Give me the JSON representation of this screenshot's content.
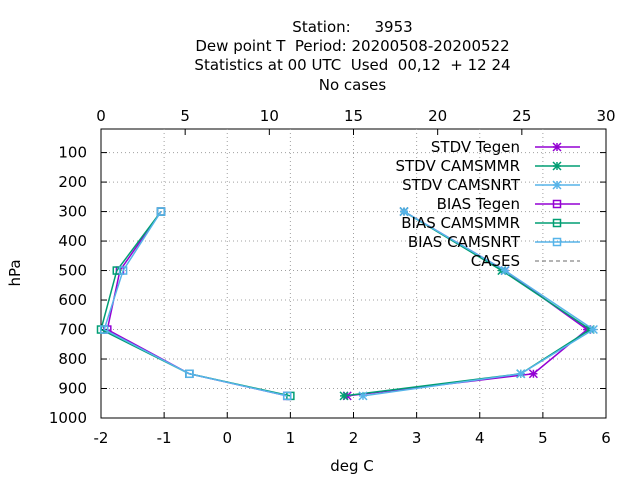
{
  "chart_data": {
    "type": "line",
    "title_lines": [
      "Station:     3953",
      "Dew point T  Period: 20200508-20200522",
      "Statistics at 00 UTC  Used  00,12  + 12 24",
      "No cases"
    ],
    "xlabel": "deg C",
    "ylabel": "hPa",
    "xlim": [
      -2,
      6
    ],
    "x2lim": [
      0,
      30
    ],
    "ylim": [
      1000,
      20
    ],
    "x_ticks": [
      "-2",
      "-1",
      "0",
      "1",
      "2",
      "3",
      "4",
      "5",
      "6"
    ],
    "x2_ticks": [
      "0",
      "5",
      "10",
      "15",
      "20",
      "25",
      "30"
    ],
    "y_ticks": [
      "100",
      "200",
      "300",
      "400",
      "500",
      "600",
      "700",
      "800",
      "900",
      "1000"
    ],
    "grid": true,
    "legend_position": "top-right",
    "levels": [
      300,
      500,
      700,
      850,
      925
    ],
    "series": [
      {
        "name": "STDV Tegen",
        "color": "#9400d3",
        "marker": "x-star",
        "values": [
          2.8,
          4.4,
          5.7,
          4.85,
          1.9
        ]
      },
      {
        "name": "STDV CAMSMMR",
        "color": "#009e73",
        "marker": "x-star",
        "values": [
          2.8,
          4.35,
          5.75,
          4.65,
          1.85
        ]
      },
      {
        "name": "STDV CAMSNRT",
        "color": "#56b4e9",
        "marker": "x-star",
        "values": [
          2.8,
          4.4,
          5.8,
          4.65,
          2.15
        ]
      },
      {
        "name": "BIAS Tegen",
        "color": "#9400d3",
        "marker": "square",
        "values": [
          -1.05,
          -1.7,
          -1.9,
          -0.6,
          0.95
        ]
      },
      {
        "name": "BIAS CAMSMMR",
        "color": "#009e73",
        "marker": "square",
        "values": [
          -1.05,
          -1.75,
          -2.0,
          -0.6,
          1.0
        ]
      },
      {
        "name": "BIAS CAMSNRT",
        "color": "#56b4e9",
        "marker": "square",
        "values": [
          -1.05,
          -1.65,
          -1.95,
          -0.6,
          0.95
        ]
      },
      {
        "name": "CASES",
        "color": "#888888",
        "marker": "none",
        "dashed": true,
        "values": []
      }
    ]
  }
}
